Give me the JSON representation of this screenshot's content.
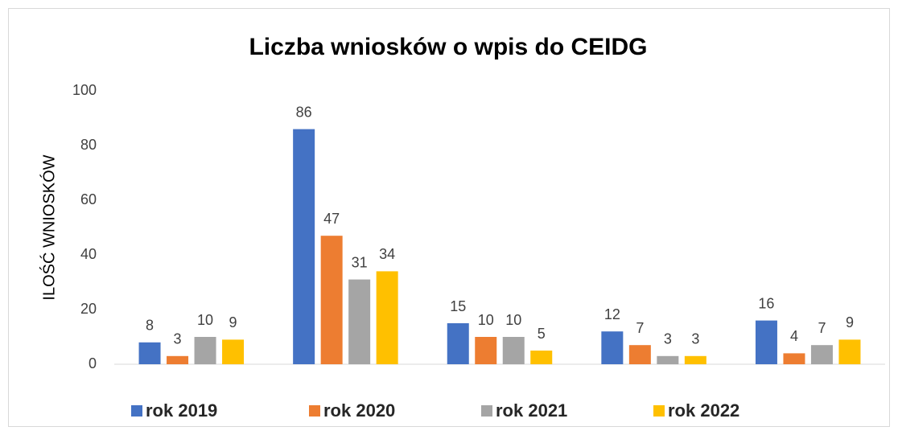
{
  "chart_data": {
    "type": "bar",
    "title": "Liczba wniosków o wpis do CEIDG",
    "y_label": "ILOŚĆ WNIOSKÓW",
    "categories": [
      null,
      null,
      null,
      null,
      null
    ],
    "series": [
      {
        "name": "rok 2019",
        "color": "#4472c4",
        "values": [
          8,
          86,
          15,
          12,
          16
        ]
      },
      {
        "name": "rok 2020",
        "color": "#ed7d31",
        "values": [
          3,
          47,
          10,
          7,
          4
        ]
      },
      {
        "name": "rok 2021",
        "color": "#a5a5a5",
        "values": [
          10,
          31,
          10,
          3,
          7
        ]
      },
      {
        "name": "rok 2022",
        "color": "#ffc000",
        "values": [
          9,
          34,
          5,
          3,
          9
        ]
      }
    ],
    "ylim": [
      0,
      100
    ],
    "yticks": [
      0,
      20,
      40,
      60,
      80,
      100
    ],
    "grid": false,
    "legend": "bottom"
  }
}
